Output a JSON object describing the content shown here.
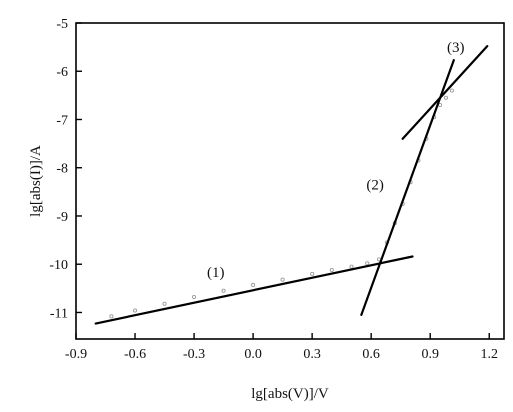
{
  "chart_data": {
    "type": "scatter",
    "xlabel": "lg[abs(V)]/V",
    "ylabel": "lg[abs(I)]/A",
    "xlim": [
      -0.9,
      1.275
    ],
    "ylim": [
      -11.55,
      -5.0
    ],
    "x_ticks": [
      -0.9,
      -0.6,
      -0.3,
      0.0,
      0.3,
      0.6,
      0.9,
      1.2
    ],
    "x_tick_labels": [
      "-0.9",
      "-0.6",
      "-0.3",
      "0.0",
      "0.3",
      "0.6",
      "0.9",
      "1.2"
    ],
    "y_ticks": [
      -5,
      -6,
      -7,
      -8,
      -9,
      -10,
      -11
    ],
    "y_tick_labels": [
      "-5",
      "-6",
      "-7",
      "-8",
      "-9",
      "-10",
      "-11"
    ],
    "grid": false,
    "legend": "none",
    "measured_data": {
      "color": "#9a9a9a",
      "x": [
        -0.72,
        -0.6,
        -0.45,
        -0.3,
        -0.15,
        0.0,
        0.15,
        0.3,
        0.4,
        0.5,
        0.58,
        0.64,
        0.68,
        0.72,
        0.76,
        0.8,
        0.84,
        0.88,
        0.92,
        0.95,
        0.98,
        1.01
      ],
      "y": [
        -11.08,
        -10.96,
        -10.82,
        -10.68,
        -10.55,
        -10.43,
        -10.32,
        -10.2,
        -10.12,
        -10.05,
        -9.98,
        -9.9,
        -9.55,
        -9.15,
        -8.75,
        -8.3,
        -7.85,
        -7.4,
        -6.95,
        -6.7,
        -6.55,
        -6.4
      ]
    },
    "fit_lines": [
      {
        "name": "(1)",
        "x": [
          -0.8,
          0.81
        ],
        "y": [
          -11.23,
          -9.84
        ],
        "label_at": [
          -0.19,
          -10.27
        ]
      },
      {
        "name": "(2)",
        "x": [
          0.55,
          1.02
        ],
        "y": [
          -11.05,
          -5.77
        ],
        "label_at": [
          0.62,
          -8.45
        ]
      },
      {
        "name": "(3)",
        "x": [
          0.76,
          1.19
        ],
        "y": [
          -7.4,
          -5.48
        ],
        "label_at": [
          1.03,
          -5.6
        ]
      }
    ],
    "line_color": "#000000"
  }
}
